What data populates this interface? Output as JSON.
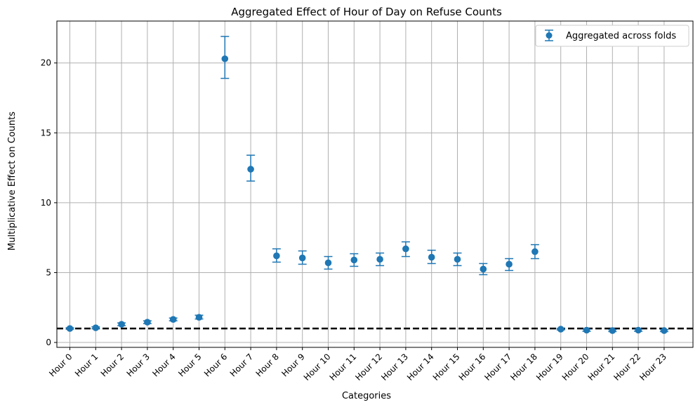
{
  "chart_data": {
    "type": "scatter",
    "title": "Aggregated Effect of Hour of Day on Refuse Counts",
    "xlabel": "Categories",
    "ylabel": "Multiplicative Effect on Counts",
    "categories": [
      "Hour 0",
      "Hour 1",
      "Hour 2",
      "Hour 3",
      "Hour 4",
      "Hour 5",
      "Hour 6",
      "Hour 7",
      "Hour 8",
      "Hour 9",
      "Hour 10",
      "Hour 11",
      "Hour 12",
      "Hour 13",
      "Hour 14",
      "Hour 15",
      "Hour 16",
      "Hour 17",
      "Hour 18",
      "Hour 19",
      "Hour 20",
      "Hour 21",
      "Hour 22",
      "Hour 23"
    ],
    "series": [
      {
        "name": "Aggregated across folds",
        "values": [
          1.0,
          1.05,
          1.3,
          1.45,
          1.65,
          1.8,
          20.3,
          12.4,
          6.2,
          6.05,
          5.7,
          5.9,
          5.95,
          6.7,
          6.1,
          5.95,
          5.25,
          5.6,
          6.5,
          0.95,
          0.88,
          0.85,
          0.88,
          0.85
        ],
        "err_low": [
          0.95,
          0.98,
          1.2,
          1.35,
          1.55,
          1.68,
          18.9,
          11.55,
          5.75,
          5.6,
          5.25,
          5.45,
          5.5,
          6.15,
          5.65,
          5.5,
          4.85,
          5.15,
          6.0,
          0.9,
          0.8,
          0.78,
          0.8,
          0.78
        ],
        "err_high": [
          1.05,
          1.12,
          1.4,
          1.55,
          1.75,
          1.95,
          21.9,
          13.4,
          6.7,
          6.55,
          6.15,
          6.35,
          6.4,
          7.2,
          6.6,
          6.4,
          5.65,
          6.0,
          7.0,
          1.0,
          0.95,
          0.92,
          0.95,
          0.92
        ]
      }
    ],
    "reference_line": {
      "y": 1.0,
      "style": "dashed",
      "color": "#000000"
    },
    "ylim": [
      -0.35,
      23.0
    ],
    "yticks": [
      0,
      5,
      10,
      15,
      20
    ],
    "grid": true,
    "legend_position": "top-right",
    "color": "#1f77b4"
  }
}
